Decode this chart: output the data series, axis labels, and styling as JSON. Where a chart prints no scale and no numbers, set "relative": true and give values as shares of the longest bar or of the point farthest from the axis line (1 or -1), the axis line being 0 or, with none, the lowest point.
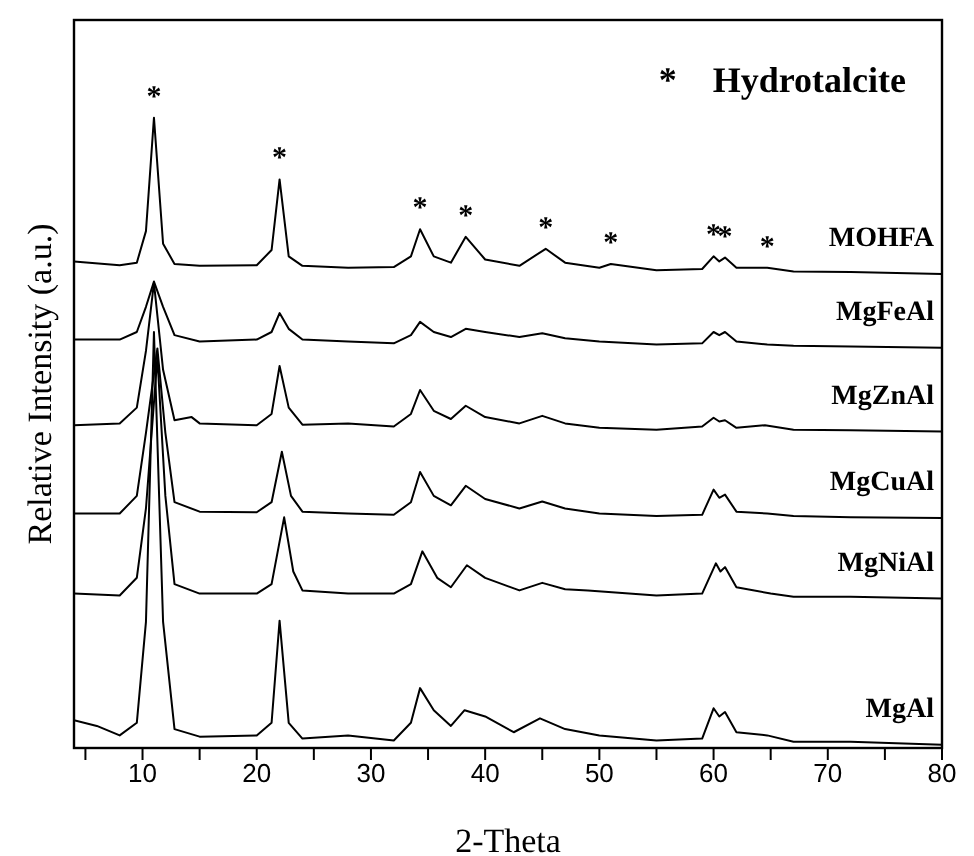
{
  "chart_data": {
    "type": "line",
    "relative": true,
    "xlabel": "2-Theta",
    "ylabel": "Relative Intensity (a.u.)",
    "xlim": [
      4,
      80
    ],
    "xticks": [
      {
        "value": 5,
        "label": null
      },
      10,
      {
        "value": 15,
        "label": null
      },
      20,
      {
        "value": 25,
        "label": null
      },
      30,
      {
        "value": 35,
        "label": null
      },
      40,
      {
        "value": 45,
        "label": null
      },
      50,
      {
        "value": 55,
        "label": null
      },
      60,
      {
        "value": 65,
        "label": null
      },
      70,
      {
        "value": 75,
        "label": null
      },
      80
    ],
    "grid": false,
    "marker": "none",
    "line_style": "solid",
    "series": [
      {
        "name": "MOHFA",
        "color": "#000000",
        "x": [
          4,
          8,
          9.5,
          10.3,
          11,
          11.8,
          12.8,
          15,
          20,
          21.3,
          22,
          22.8,
          24,
          28,
          32,
          33.5,
          34.3,
          35.5,
          37,
          38.3,
          40,
          43,
          45.3,
          47,
          50,
          51,
          55,
          59,
          60,
          60.5,
          61,
          62,
          64.7,
          67,
          72,
          80
        ],
        "values": [
          0.772,
          0.766,
          0.77,
          0.82,
          1.0,
          0.8,
          0.768,
          0.765,
          0.766,
          0.79,
          0.902,
          0.78,
          0.765,
          0.762,
          0.763,
          0.78,
          0.823,
          0.78,
          0.77,
          0.811,
          0.775,
          0.765,
          0.792,
          0.77,
          0.762,
          0.768,
          0.758,
          0.76,
          0.78,
          0.772,
          0.778,
          0.762,
          0.762,
          0.756,
          0.755,
          0.752
        ]
      },
      {
        "name": "MgFeAl",
        "color": "#000000",
        "x": [
          4,
          8,
          9.5,
          10.3,
          11,
          11.8,
          12.8,
          15,
          20,
          21.3,
          22,
          22.8,
          24,
          28,
          32,
          33.5,
          34.3,
          35.5,
          37,
          38.3,
          40,
          43,
          45,
          47,
          50,
          55,
          59,
          60,
          60.5,
          61,
          62,
          64.7,
          67,
          72,
          80
        ],
        "values": [
          0.648,
          0.648,
          0.66,
          0.7,
          0.74,
          0.7,
          0.655,
          0.645,
          0.648,
          0.66,
          0.69,
          0.665,
          0.648,
          0.645,
          0.642,
          0.655,
          0.676,
          0.66,
          0.652,
          0.665,
          0.66,
          0.652,
          0.658,
          0.65,
          0.645,
          0.64,
          0.642,
          0.66,
          0.655,
          0.66,
          0.645,
          0.64,
          0.638,
          0.637,
          0.635
        ]
      },
      {
        "name": "MgZnAl",
        "color": "#000000",
        "x": [
          4,
          8,
          9.5,
          10.3,
          11,
          11.8,
          12.8,
          14.3,
          15,
          20,
          21.3,
          22,
          22.8,
          24,
          28,
          32,
          33.5,
          34.3,
          35.5,
          37,
          38.3,
          40,
          43,
          45,
          47,
          50,
          55,
          59,
          60,
          60.5,
          61,
          62,
          64.5,
          67,
          72,
          80
        ],
        "values": [
          0.512,
          0.515,
          0.54,
          0.63,
          0.738,
          0.6,
          0.52,
          0.525,
          0.515,
          0.512,
          0.53,
          0.606,
          0.54,
          0.513,
          0.515,
          0.51,
          0.53,
          0.568,
          0.535,
          0.522,
          0.543,
          0.525,
          0.515,
          0.527,
          0.515,
          0.508,
          0.505,
          0.51,
          0.524,
          0.518,
          0.52,
          0.508,
          0.512,
          0.505,
          0.504,
          0.502
        ]
      },
      {
        "name": "MgCuAl",
        "color": "#000000",
        "x": [
          4,
          8,
          9.5,
          10.3,
          11.3,
          12,
          12.8,
          15,
          20,
          21.3,
          22.2,
          23,
          24,
          28,
          32,
          33.5,
          34.3,
          35.5,
          37,
          38.3,
          40,
          43,
          45,
          47,
          50,
          55,
          59,
          60,
          60.5,
          61,
          62,
          64.7,
          67,
          72,
          80
        ],
        "values": [
          0.372,
          0.372,
          0.4,
          0.5,
          0.634,
          0.5,
          0.39,
          0.375,
          0.374,
          0.39,
          0.47,
          0.4,
          0.375,
          0.372,
          0.37,
          0.39,
          0.438,
          0.4,
          0.385,
          0.416,
          0.395,
          0.38,
          0.391,
          0.38,
          0.372,
          0.368,
          0.37,
          0.41,
          0.397,
          0.402,
          0.375,
          0.372,
          0.368,
          0.366,
          0.365
        ]
      },
      {
        "name": "MgNiAl",
        "color": "#000000",
        "x": [
          4,
          8,
          9.5,
          10.3,
          11.3,
          12,
          12.8,
          15,
          20,
          21.3,
          22.4,
          23.2,
          24,
          28,
          32,
          33.5,
          34.5,
          35.8,
          37,
          38.4,
          40,
          43,
          45,
          47,
          49,
          55,
          59,
          60.2,
          60.6,
          61,
          62,
          65,
          67,
          72,
          80
        ],
        "values": [
          0.245,
          0.242,
          0.27,
          0.38,
          0.62,
          0.4,
          0.26,
          0.245,
          0.245,
          0.26,
          0.366,
          0.28,
          0.25,
          0.245,
          0.245,
          0.26,
          0.312,
          0.27,
          0.255,
          0.29,
          0.27,
          0.25,
          0.262,
          0.252,
          0.25,
          0.242,
          0.245,
          0.293,
          0.28,
          0.287,
          0.255,
          0.245,
          0.24,
          0.24,
          0.237
        ]
      },
      {
        "name": "MgAl",
        "color": "#000000",
        "x": [
          4,
          6,
          8,
          9.5,
          10.3,
          11,
          11.8,
          12.8,
          15,
          20,
          21.3,
          22,
          22.8,
          24,
          28,
          32,
          33.5,
          34.3,
          35.5,
          37,
          38.2,
          40,
          42.5,
          44.8,
          47,
          50,
          55,
          59,
          60,
          60.5,
          61,
          62,
          64.7,
          67,
          72,
          80
        ],
        "values": [
          0.044,
          0.035,
          0.02,
          0.04,
          0.2,
          0.66,
          0.2,
          0.03,
          0.018,
          0.02,
          0.04,
          0.202,
          0.04,
          0.015,
          0.02,
          0.012,
          0.04,
          0.095,
          0.06,
          0.035,
          0.06,
          0.05,
          0.025,
          0.047,
          0.03,
          0.02,
          0.012,
          0.015,
          0.063,
          0.05,
          0.057,
          0.025,
          0.02,
          0.01,
          0.01,
          0.005
        ]
      }
    ],
    "annotations": [
      {
        "text": "*",
        "x": 11,
        "y": 1.0
      },
      {
        "text": "*",
        "x": 22,
        "y": 0.902
      },
      {
        "text": "*",
        "x": 34.3,
        "y": 0.823
      },
      {
        "text": "*",
        "x": 38.3,
        "y": 0.811
      },
      {
        "text": "*",
        "x": 45.3,
        "y": 0.792
      },
      {
        "text": "*",
        "x": 51,
        "y": 0.768
      },
      {
        "text": "*",
        "x": 60,
        "y": 0.78
      },
      {
        "text": "*",
        "x": 61,
        "y": 0.778
      },
      {
        "text": "*",
        "x": 64.7,
        "y": 0.762
      },
      "*    Hydrotalcite"
    ]
  }
}
